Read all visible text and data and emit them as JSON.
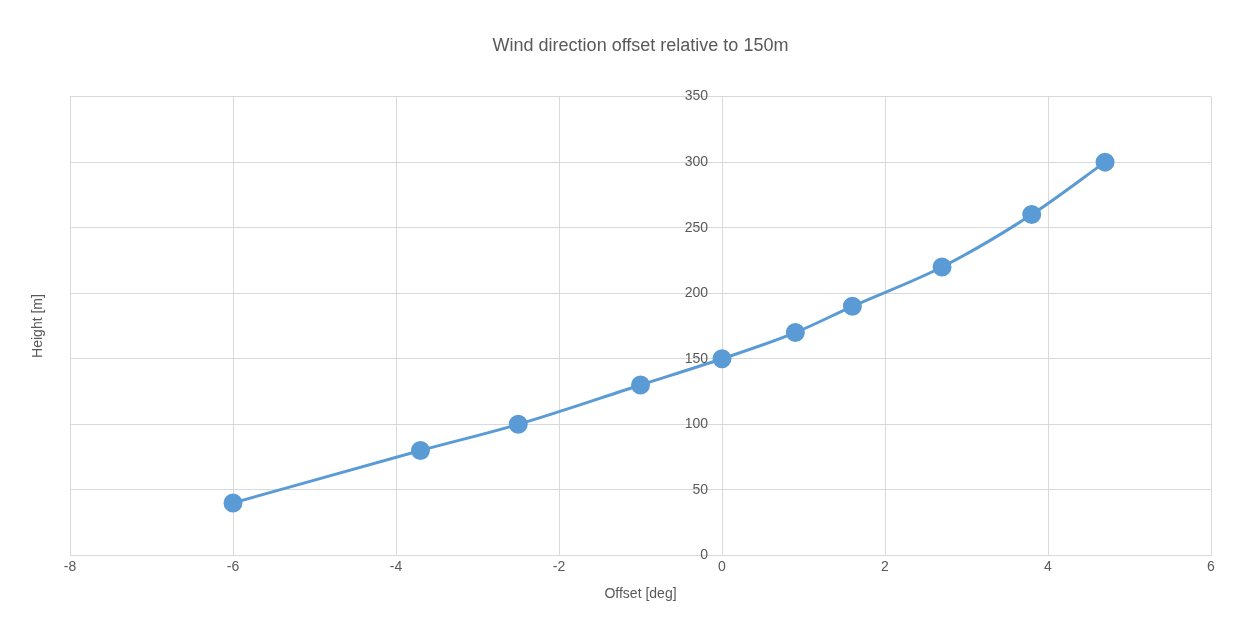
{
  "chart_data": {
    "type": "line",
    "title": "Wind direction offset relative to 150m",
    "xlabel": "Offset [deg]",
    "ylabel": "Height [m]",
    "x": [
      -6,
      -3.7,
      -2.5,
      -1,
      0,
      0.9,
      1.6,
      2.7,
      3.8,
      4.7
    ],
    "series": [
      {
        "color": "#5b9bd5",
        "values": [
          40,
          80,
          100,
          130,
          150,
          170,
          190,
          220,
          260,
          300
        ]
      }
    ],
    "xlim": [
      -8,
      6
    ],
    "xticks": [
      -8,
      -6,
      -4,
      -2,
      0,
      2,
      4,
      6
    ],
    "ylim": [
      0,
      350
    ],
    "yticks": [
      0,
      50,
      100,
      150,
      200,
      250,
      300,
      350
    ],
    "grid": true,
    "legend": false,
    "marker": "circle",
    "line_style": "solid"
  }
}
